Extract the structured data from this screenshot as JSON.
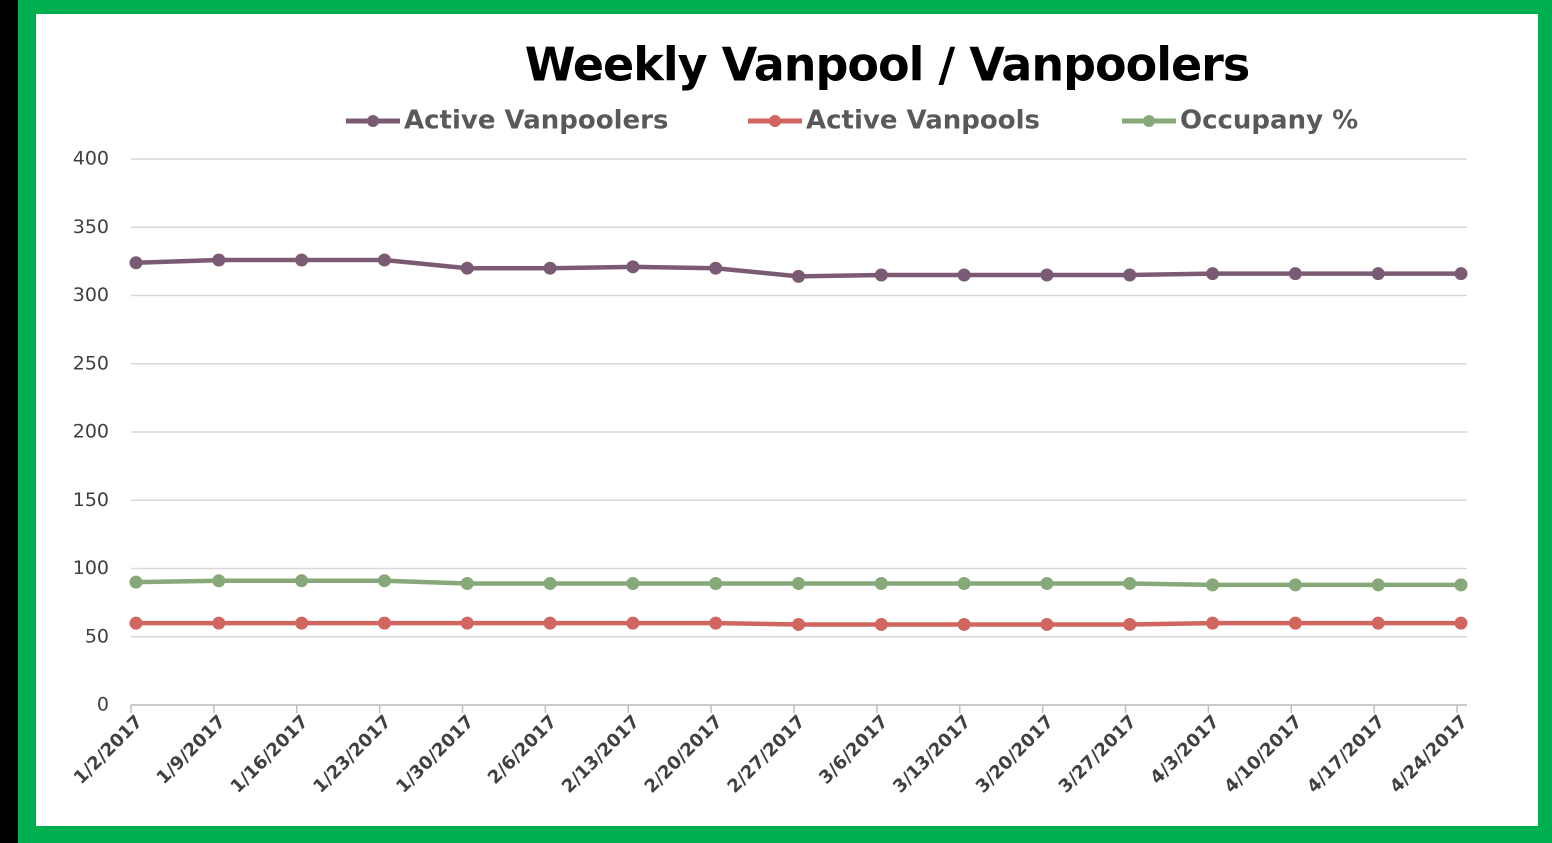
{
  "chart_data": {
    "type": "line",
    "title": "Weekly Vanpool / Vanpoolers",
    "categories": [
      "1/2/2017",
      "1/9/2017",
      "1/16/2017",
      "1/23/2017",
      "1/30/2017",
      "2/6/2017",
      "2/13/2017",
      "2/20/2017",
      "2/27/2017",
      "3/6/2017",
      "3/13/2017",
      "3/20/2017",
      "3/27/2017",
      "4/3/2017",
      "4/10/2017",
      "4/17/2017",
      "4/24/2017"
    ],
    "series": [
      {
        "name": "Active Vanpoolers",
        "color": "#7b5b74",
        "values": [
          324,
          326,
          326,
          326,
          320,
          320,
          321,
          320,
          314,
          315,
          315,
          315,
          315,
          316,
          316,
          316,
          316
        ]
      },
      {
        "name": "Active Vanpools",
        "color": "#d0665f",
        "values": [
          60,
          60,
          60,
          60,
          60,
          60,
          60,
          60,
          59,
          59,
          59,
          59,
          59,
          60,
          60,
          60,
          60
        ]
      },
      {
        "name": "Occupany %",
        "color": "#87a97a",
        "values": [
          90,
          91,
          91,
          91,
          89,
          89,
          89,
          89,
          89,
          89,
          89,
          89,
          89,
          88,
          88,
          88,
          88
        ]
      }
    ],
    "ylim": [
      0,
      400
    ],
    "yticks": [
      0,
      50,
      100,
      150,
      200,
      250,
      300,
      350,
      400
    ],
    "grid": true,
    "legend": "top"
  }
}
